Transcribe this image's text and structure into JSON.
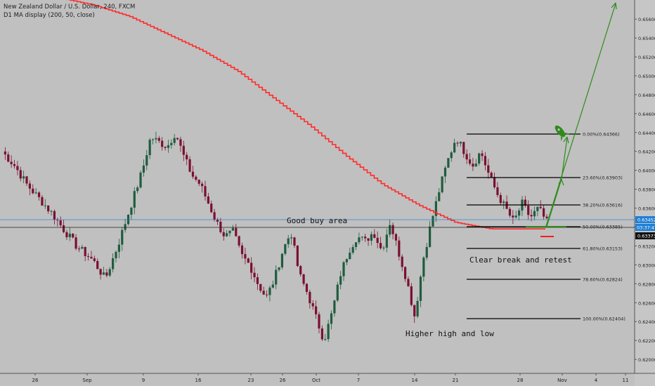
{
  "header": {
    "symbol_line": "New Zealand Dollar / U.S. Dollar, 240, FXCM",
    "indicator_line": "D1 MA display (200, 50, close)"
  },
  "colors": {
    "background": "#c0c0c0",
    "candle_up": "#1f5c3e",
    "candle_down": "#7a1030",
    "ma": "#ff2b2b",
    "arrow": "#2e8b1a",
    "fib": "#000000",
    "current_price": "#1e7fd6"
  },
  "chart_data": {
    "type": "candlestick",
    "symbol": "New Zealand Dollar / U.S. Dollar, 240, FXCM",
    "ylim": [
      0.6185,
      0.6575
    ],
    "y_ticks": [
      "0.62000",
      "0.62200",
      "0.62400",
      "0.62600",
      "0.62800",
      "0.63000",
      "0.63200",
      "0.63400",
      "0.63600",
      "0.63800",
      "0.64000",
      "0.64200",
      "0.64400",
      "0.64600",
      "0.64800",
      "0.65000",
      "0.65200",
      "0.65400",
      "0.65600"
    ],
    "x_ticks": [
      "26",
      "Sep",
      "9",
      "16",
      "23",
      "26",
      "Oct",
      "7",
      "14",
      "21",
      "28",
      "Nov",
      "4",
      "11"
    ],
    "price_labels": {
      "last_price": "0.63452",
      "countdown": "03:37:47",
      "reference_price": "0.63373"
    },
    "fib_levels": [
      {
        "label": "0.00%(0.64366)",
        "price": 0.64366
      },
      {
        "label": "23.60%(0.63903)",
        "price": 0.63903
      },
      {
        "label": "38.20%(0.63616)",
        "price": 0.63616
      },
      {
        "label": "50.00%(0.63385)",
        "price": 0.63385
      },
      {
        "label": "61.80%(0.63153)",
        "price": 0.63153
      },
      {
        "label": "78.60%(0.62824)",
        "price": 0.62824
      },
      {
        "label": "100.00%(0.62404)",
        "price": 0.62404
      }
    ],
    "annotations": {
      "good_buy_area": "Good buy area",
      "clear_break": "Clear break and retest",
      "higher_high": "Higher high and low"
    },
    "price_path": [
      [
        0,
        0.642
      ],
      [
        3,
        0.6405
      ],
      [
        6,
        0.6385
      ],
      [
        9,
        0.637
      ],
      [
        12,
        0.6355
      ],
      [
        15,
        0.6337
      ],
      [
        18,
        0.632
      ],
      [
        22,
        0.6305
      ],
      [
        25,
        0.6285
      ],
      [
        28,
        0.632
      ],
      [
        31,
        0.636
      ],
      [
        34,
        0.64
      ],
      [
        36,
        0.6435
      ],
      [
        38,
        0.643
      ],
      [
        40,
        0.6425
      ],
      [
        42,
        0.644
      ],
      [
        44,
        0.6415
      ],
      [
        46,
        0.6395
      ],
      [
        48,
        0.6385
      ],
      [
        50,
        0.6365
      ],
      [
        52,
        0.6345
      ],
      [
        54,
        0.633
      ],
      [
        56,
        0.6335
      ],
      [
        58,
        0.631
      ],
      [
        60,
        0.63
      ],
      [
        62,
        0.628
      ],
      [
        64,
        0.6265
      ],
      [
        66,
        0.6285
      ],
      [
        68,
        0.6315
      ],
      [
        70,
        0.6335
      ],
      [
        72,
        0.629
      ],
      [
        74,
        0.627
      ],
      [
        76,
        0.6245
      ],
      [
        78,
        0.622
      ],
      [
        80,
        0.625
      ],
      [
        82,
        0.629
      ],
      [
        84,
        0.6315
      ],
      [
        86,
        0.633
      ],
      [
        88,
        0.6325
      ],
      [
        90,
        0.6335
      ],
      [
        92,
        0.6315
      ],
      [
        94,
        0.6345
      ],
      [
        96,
        0.6315
      ],
      [
        98,
        0.6285
      ],
      [
        100,
        0.6245
      ],
      [
        102,
        0.6305
      ],
      [
        104,
        0.6345
      ],
      [
        106,
        0.638
      ],
      [
        108,
        0.641
      ],
      [
        110,
        0.6435
      ],
      [
        112,
        0.642
      ],
      [
        114,
        0.6405
      ],
      [
        116,
        0.642
      ],
      [
        118,
        0.6395
      ],
      [
        120,
        0.6375
      ],
      [
        122,
        0.636
      ],
      [
        124,
        0.6345
      ],
      [
        126,
        0.6365
      ],
      [
        128,
        0.635
      ],
      [
        130,
        0.636
      ],
      [
        132,
        0.6345
      ]
    ],
    "ma_path": [
      [
        0,
        0.6583
      ],
      [
        10,
        0.6575
      ],
      [
        20,
        0.6563
      ],
      [
        30,
        0.6545
      ],
      [
        40,
        0.6527
      ],
      [
        50,
        0.6505
      ],
      [
        60,
        0.6476
      ],
      [
        70,
        0.6447
      ],
      [
        80,
        0.6415
      ],
      [
        90,
        0.6385
      ],
      [
        100,
        0.6363
      ],
      [
        110,
        0.6345
      ],
      [
        120,
        0.6338
      ],
      [
        130,
        0.6338
      ]
    ],
    "ma_x_range": [
      0,
      135
    ]
  }
}
